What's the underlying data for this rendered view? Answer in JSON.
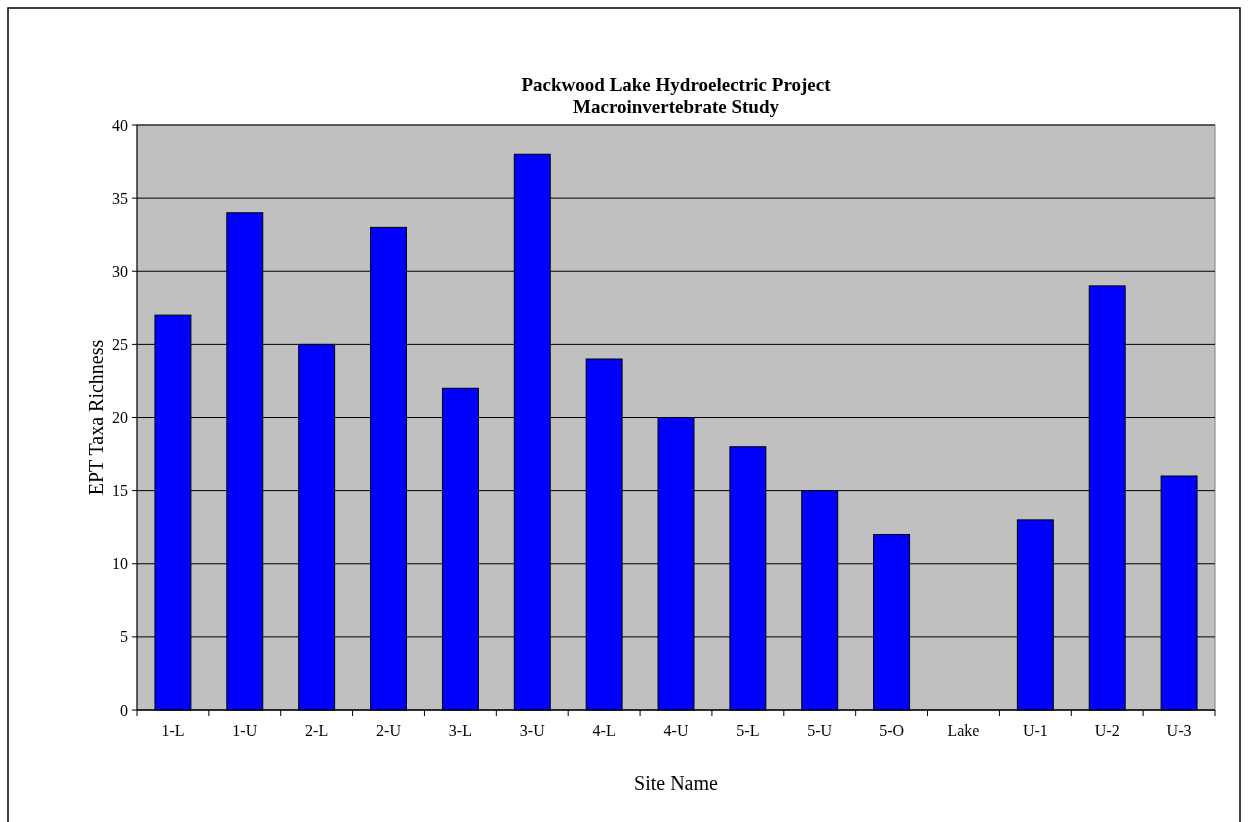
{
  "chart_data": {
    "type": "bar",
    "title": "Packwood Lake Hydroelectric Project\nMacroinvertebrate Study",
    "xlabel": "Site Name",
    "ylabel": "EPT Taxa Richness",
    "categories": [
      "1-L",
      "1-U",
      "2-L",
      "2-U",
      "3-L",
      "3-U",
      "4-L",
      "4-U",
      "5-L",
      "5-U",
      "5-O",
      "Lake",
      "U-1",
      "U-2",
      "U-3"
    ],
    "values": [
      27,
      34,
      25,
      33,
      22,
      38,
      24,
      20,
      18,
      15,
      12,
      null,
      13,
      29,
      16
    ],
    "color": "#0000ff",
    "ylim": [
      0,
      40
    ],
    "yticks": [
      0,
      5,
      10,
      15,
      20,
      25,
      30,
      35,
      40
    ],
    "grid": "y"
  }
}
